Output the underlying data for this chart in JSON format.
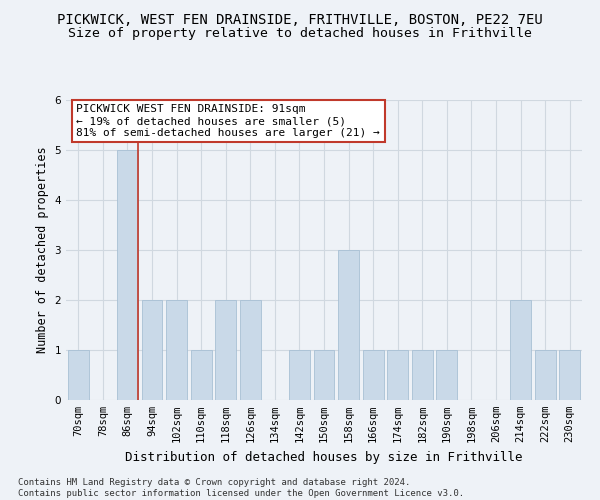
{
  "title": "PICKWICK, WEST FEN DRAINSIDE, FRITHVILLE, BOSTON, PE22 7EU",
  "subtitle": "Size of property relative to detached houses in Frithville",
  "xlabel": "Distribution of detached houses by size in Frithville",
  "ylabel": "Number of detached properties",
  "categories": [
    "70sqm",
    "78sqm",
    "86sqm",
    "94sqm",
    "102sqm",
    "110sqm",
    "118sqm",
    "126sqm",
    "134sqm",
    "142sqm",
    "150sqm",
    "158sqm",
    "166sqm",
    "174sqm",
    "182sqm",
    "190sqm",
    "198sqm",
    "206sqm",
    "214sqm",
    "222sqm",
    "230sqm"
  ],
  "values": [
    1,
    0,
    5,
    2,
    2,
    1,
    2,
    2,
    0,
    1,
    1,
    3,
    1,
    1,
    1,
    1,
    0,
    0,
    2,
    1,
    1
  ],
  "bar_color": "#c9d9e8",
  "bar_edge_color": "#a8c0d4",
  "highlight_line_index": 2,
  "highlight_line_color": "#c0392b",
  "annotation_text": "PICKWICK WEST FEN DRAINSIDE: 91sqm\n← 19% of detached houses are smaller (5)\n81% of semi-detached houses are larger (21) →",
  "annotation_box_color": "#ffffff",
  "annotation_box_edge": "#c0392b",
  "ylim": [
    0,
    6
  ],
  "yticks": [
    0,
    1,
    2,
    3,
    4,
    5,
    6
  ],
  "grid_color": "#d0d8e0",
  "background_color": "#eef2f7",
  "footer_text": "Contains HM Land Registry data © Crown copyright and database right 2024.\nContains public sector information licensed under the Open Government Licence v3.0.",
  "title_fontsize": 10,
  "subtitle_fontsize": 9.5,
  "annotation_fontsize": 8,
  "tick_fontsize": 7.5,
  "ylabel_fontsize": 8.5,
  "xlabel_fontsize": 9,
  "footer_fontsize": 6.5
}
